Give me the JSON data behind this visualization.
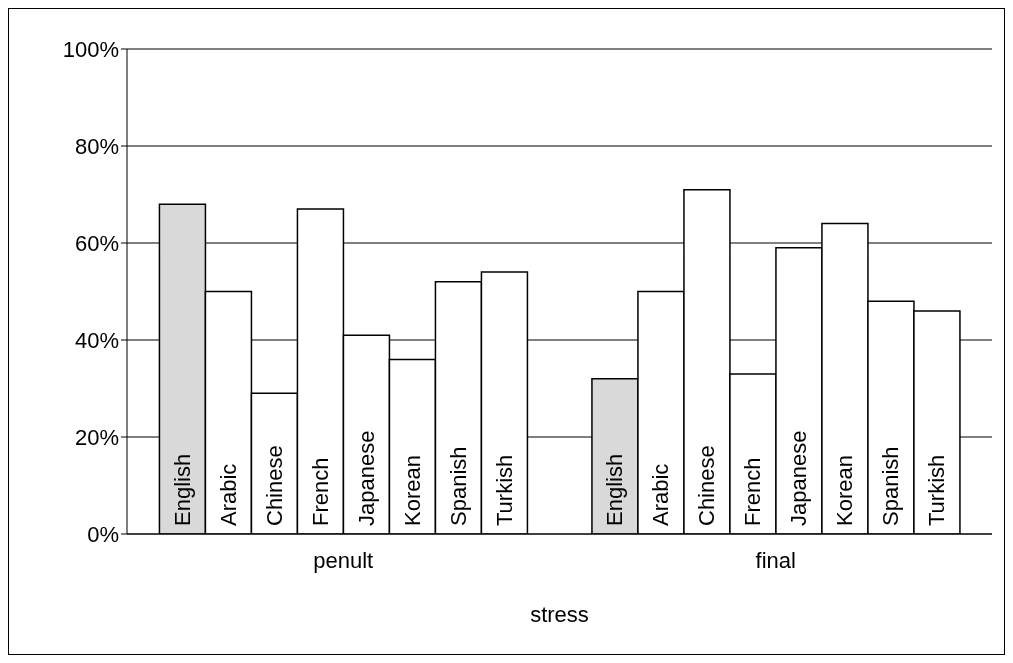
{
  "chart_data": {
    "type": "bar",
    "xlabel": "stress",
    "categories": [
      "penult",
      "final"
    ],
    "series": [
      {
        "name": "English",
        "color": "#d9d9d9",
        "values": [
          68,
          32
        ]
      },
      {
        "name": "Arabic",
        "color": "#ffffff",
        "values": [
          50,
          50
        ]
      },
      {
        "name": "Chinese",
        "color": "#ffffff",
        "values": [
          29,
          71
        ]
      },
      {
        "name": "French",
        "color": "#ffffff",
        "values": [
          67,
          33
        ]
      },
      {
        "name": "Japanese",
        "color": "#ffffff",
        "values": [
          41,
          59
        ]
      },
      {
        "name": "Korean",
        "color": "#ffffff",
        "values": [
          36,
          64
        ]
      },
      {
        "name": "Spanish",
        "color": "#ffffff",
        "values": [
          52,
          48
        ]
      },
      {
        "name": "Turkish",
        "color": "#ffffff",
        "values": [
          54,
          46
        ]
      }
    ],
    "ylim": [
      0,
      100
    ],
    "yticks": [
      {
        "value": 0,
        "label": "0%"
      },
      {
        "value": 20,
        "label": "20%"
      },
      {
        "value": 40,
        "label": "40%"
      },
      {
        "value": 60,
        "label": "60%"
      },
      {
        "value": 80,
        "label": "80%"
      },
      {
        "value": 100,
        "label": "100%"
      }
    ],
    "grid": "y",
    "legend": false
  }
}
